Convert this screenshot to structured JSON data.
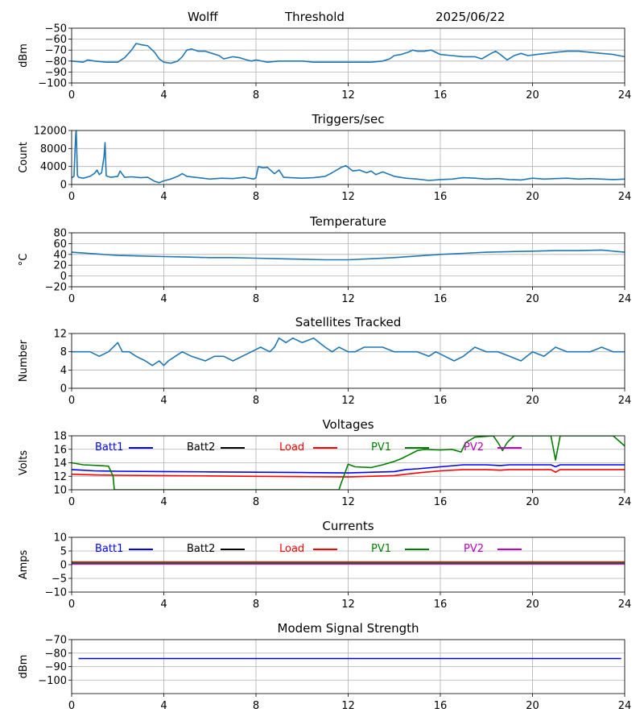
{
  "header": {
    "station": "Wolff",
    "mode": "Threshold",
    "date": "2025/06/22"
  },
  "chart_data": [
    {
      "type": "line",
      "title": "",
      "xlabel": "",
      "ylabel": "dBm",
      "xlim": [
        0,
        24
      ],
      "ylim": [
        -100,
        -50
      ],
      "xticks": [
        "0",
        "4",
        "8",
        "12",
        "16",
        "20",
        "24"
      ],
      "yticks": [
        "−50",
        "−60",
        "−70",
        "−80",
        "−90",
        "−100"
      ],
      "grid": true,
      "series": [
        {
          "color": "#1f77b4",
          "x": [
            0,
            0.5,
            0.7,
            1.0,
            1.5,
            2.0,
            2.3,
            2.6,
            2.8,
            3.0,
            3.3,
            3.6,
            3.8,
            4.0,
            4.3,
            4.6,
            4.8,
            5.0,
            5.2,
            5.5,
            5.8,
            6.1,
            6.4,
            6.6,
            7.0,
            7.3,
            7.6,
            7.8,
            8.0,
            8.5,
            9.0,
            9.5,
            10.0,
            10.5,
            11.0,
            12.0,
            13.0,
            13.5,
            13.8,
            14.0,
            14.3,
            14.6,
            14.8,
            15.0,
            15.3,
            15.6,
            15.8,
            16.0,
            16.5,
            17.0,
            17.5,
            17.8,
            18.2,
            18.4,
            18.6,
            18.9,
            19.2,
            19.5,
            19.8,
            20.2,
            20.6,
            21.0,
            21.5,
            22.0,
            22.5,
            23.0,
            23.5,
            24.0
          ],
          "y": [
            -80,
            -81,
            -79,
            -80,
            -81,
            -81,
            -77,
            -70,
            -64,
            -65,
            -66,
            -72,
            -78,
            -81,
            -82,
            -80,
            -76,
            -70,
            -69,
            -71,
            -71,
            -73,
            -75,
            -78,
            -76,
            -77,
            -79,
            -80,
            -79,
            -81,
            -80,
            -80,
            -80,
            -81,
            -81,
            -81,
            -81,
            -80,
            -78,
            -75,
            -74,
            -72,
            -70,
            -71,
            -71,
            -70,
            -72,
            -74,
            -75,
            -76,
            -76,
            -78,
            -73,
            -71,
            -74,
            -79,
            -75,
            -73,
            -75,
            -74,
            -73,
            -72,
            -71,
            -71,
            -72,
            -73,
            -74,
            -76
          ]
        }
      ]
    },
    {
      "type": "line",
      "title": "Triggers/sec",
      "xlabel": "",
      "ylabel": "Count",
      "xlim": [
        0,
        24
      ],
      "ylim": [
        0,
        12000
      ],
      "xticks": [
        "0",
        "4",
        "8",
        "12",
        "16",
        "20",
        "24"
      ],
      "yticks": [
        "12000",
        "8000",
        "4000",
        "0"
      ],
      "grid": true,
      "series": [
        {
          "color": "#1f77b4",
          "x": [
            0,
            0.1,
            0.15,
            0.18,
            0.2,
            0.25,
            0.3,
            0.5,
            0.8,
            1.0,
            1.1,
            1.2,
            1.3,
            1.4,
            1.45,
            1.5,
            1.55,
            1.7,
            2.0,
            2.1,
            2.3,
            2.6,
            3.0,
            3.3,
            3.6,
            3.8,
            4.0,
            4.3,
            4.6,
            4.8,
            5.0,
            5.5,
            6.0,
            6.5,
            7.0,
            7.5,
            7.9,
            8.0,
            8.1,
            8.3,
            8.5,
            8.8,
            9.0,
            9.2,
            9.5,
            10.0,
            10.5,
            11.0,
            11.3,
            11.5,
            11.7,
            11.9,
            12.0,
            12.2,
            12.5,
            12.8,
            13.0,
            13.2,
            13.5,
            14.0,
            14.5,
            15.0,
            15.5,
            16.0,
            16.5,
            17.0,
            17.5,
            18.0,
            18.5,
            19.0,
            19.5,
            20.0,
            20.5,
            21.0,
            21.5,
            22.0,
            22.5,
            23.0,
            23.5,
            24.0
          ],
          "y": [
            1500,
            1800,
            8000,
            11500,
            12000,
            2000,
            1600,
            1400,
            1800,
            2500,
            3200,
            2200,
            2600,
            6000,
            9300,
            2000,
            1800,
            1600,
            1800,
            3000,
            1600,
            1700,
            1500,
            1600,
            700,
            400,
            800,
            1200,
            1800,
            2400,
            1800,
            1500,
            1200,
            1400,
            1300,
            1600,
            1200,
            1500,
            4000,
            3700,
            3800,
            2400,
            3200,
            1600,
            1500,
            1400,
            1500,
            1800,
            2600,
            3200,
            3800,
            4200,
            3800,
            3000,
            3200,
            2600,
            3000,
            2200,
            2800,
            1800,
            1400,
            1200,
            900,
            1100,
            1200,
            1500,
            1400,
            1200,
            1300,
            1100,
            1000,
            1400,
            1200,
            1300,
            1400,
            1200,
            1300,
            1200,
            1100,
            1200
          ]
        }
      ]
    },
    {
      "type": "line",
      "title": "Temperature",
      "xlabel": "",
      "ylabel": "°C",
      "xlim": [
        0,
        24
      ],
      "ylim": [
        -20,
        80
      ],
      "xticks": [
        "0",
        "4",
        "8",
        "12",
        "16",
        "20",
        "24"
      ],
      "yticks": [
        "80",
        "60",
        "40",
        "20",
        "0",
        "−20"
      ],
      "grid": true,
      "series": [
        {
          "color": "#1f77b4",
          "x": [
            0,
            1,
            2,
            3,
            4,
            5,
            6,
            7,
            8,
            9,
            10,
            11,
            12,
            13,
            14,
            15,
            16,
            17,
            18,
            19,
            20,
            21,
            22,
            23,
            24
          ],
          "y": [
            44,
            41,
            38,
            37,
            36,
            35,
            34,
            34,
            33,
            32,
            31,
            30,
            30,
            32,
            34,
            37,
            40,
            42,
            44,
            45,
            46,
            47,
            47,
            48,
            44
          ]
        }
      ]
    },
    {
      "type": "line",
      "title": "Satellites Tracked",
      "xlabel": "",
      "ylabel": "Number",
      "xlim": [
        0,
        24
      ],
      "ylim": [
        0,
        12
      ],
      "xticks": [
        "0",
        "4",
        "8",
        "12",
        "16",
        "20",
        "24"
      ],
      "yticks": [
        "12",
        "8",
        "4",
        "0"
      ],
      "grid": true,
      "series": [
        {
          "color": "#1f77b4",
          "x": [
            0,
            0.8,
            1.2,
            1.6,
            2.0,
            2.2,
            2.5,
            2.8,
            3.2,
            3.5,
            3.8,
            4.0,
            4.2,
            4.5,
            4.8,
            5.2,
            5.8,
            6.2,
            6.6,
            7.0,
            7.4,
            7.8,
            8.2,
            8.6,
            8.8,
            9.0,
            9.3,
            9.6,
            10.0,
            10.5,
            11.0,
            11.3,
            11.6,
            12.0,
            12.3,
            12.7,
            13.0,
            13.5,
            14.0,
            14.5,
            15.0,
            15.5,
            15.8,
            16.2,
            16.6,
            17.0,
            17.5,
            18.0,
            18.5,
            19.0,
            19.5,
            20.0,
            20.5,
            21.0,
            21.5,
            22.0,
            22.5,
            23.0,
            23.5,
            24.0
          ],
          "y": [
            8,
            8,
            7,
            8,
            10,
            8,
            8,
            7,
            6,
            5,
            6,
            5,
            6,
            7,
            8,
            7,
            6,
            7,
            7,
            6,
            7,
            8,
            9,
            8,
            9,
            11,
            10,
            11,
            10,
            11,
            9,
            8,
            9,
            8,
            8,
            9,
            9,
            9,
            8,
            8,
            8,
            7,
            8,
            7,
            6,
            7,
            9,
            8,
            8,
            7,
            6,
            8,
            7,
            9,
            8,
            8,
            8,
            9,
            8,
            8
          ]
        }
      ]
    },
    {
      "type": "line",
      "title": "Voltages",
      "xlabel": "",
      "ylabel": "Volts",
      "xlim": [
        0,
        24
      ],
      "ylim": [
        10,
        18
      ],
      "xticks": [
        "0",
        "4",
        "8",
        "12",
        "16",
        "20",
        "24"
      ],
      "yticks": [
        "18",
        "16",
        "14",
        "12",
        "10"
      ],
      "grid": true,
      "legend": "inline-top",
      "series": [
        {
          "name": "Batt1",
          "color": "#0000ff",
          "x": [
            0,
            1,
            2,
            4,
            6,
            8,
            10,
            12,
            14,
            14.5,
            15,
            16,
            17,
            18,
            18.6,
            19,
            20,
            20.8,
            21,
            21.2,
            22,
            24
          ],
          "y": [
            13.0,
            12.8,
            12.75,
            12.7,
            12.65,
            12.6,
            12.55,
            12.5,
            12.7,
            13.0,
            13.1,
            13.4,
            13.7,
            13.7,
            13.6,
            13.7,
            13.7,
            13.7,
            13.4,
            13.7,
            13.7,
            13.7
          ]
        },
        {
          "name": "Batt2",
          "color": "#000000",
          "x": [],
          "y": []
        },
        {
          "name": "Load",
          "color": "#ff0000",
          "x": [
            0,
            1,
            2,
            4,
            6,
            8,
            10,
            12,
            14,
            14.5,
            15,
            16,
            17,
            18,
            18.6,
            19,
            20,
            20.8,
            21,
            21.2,
            22,
            24
          ],
          "y": [
            12.3,
            12.2,
            12.15,
            12.1,
            12.05,
            12.0,
            11.95,
            11.9,
            12.1,
            12.3,
            12.5,
            12.8,
            13.0,
            13.0,
            12.9,
            13.0,
            13.0,
            13.0,
            12.6,
            13.0,
            13.0,
            13.0
          ]
        },
        {
          "name": "PV1",
          "color": "#008000",
          "x": [
            0,
            0.5,
            1.2,
            1.6,
            1.8,
            1.85,
            11.6,
            11.7,
            12.0,
            12.3,
            13.0,
            13.5,
            14.0,
            14.3,
            15.0,
            15.3,
            16.0,
            16.5,
            16.9,
            17.1,
            17.5,
            18.3,
            18.5,
            18.7,
            18.9,
            19.2,
            19.6,
            20.8,
            21.0,
            21.2,
            21.5,
            23.5,
            24.0
          ],
          "y": [
            14.0,
            13.7,
            13.6,
            13.5,
            12.0,
            10.0,
            10.0,
            11.0,
            13.8,
            13.4,
            13.3,
            13.7,
            14.2,
            14.6,
            15.8,
            16.0,
            15.9,
            16.0,
            15.6,
            17.0,
            17.8,
            18.0,
            17.0,
            15.8,
            17.0,
            18.0,
            18.0,
            18.0,
            14.4,
            18.0,
            18.0,
            18.0,
            16.5
          ]
        },
        {
          "name": "PV2",
          "color": "#bf00bf",
          "x": [],
          "y": []
        }
      ]
    },
    {
      "type": "line",
      "title": "Currents",
      "xlabel": "",
      "ylabel": "Amps",
      "xlim": [
        0,
        24
      ],
      "ylim": [
        -10,
        10
      ],
      "xticks": [
        "0",
        "4",
        "8",
        "12",
        "16",
        "20",
        "24"
      ],
      "yticks": [
        "10",
        "5",
        "0",
        "−5",
        "−10"
      ],
      "grid": true,
      "legend": "inline-top",
      "series": [
        {
          "name": "Batt1",
          "color": "#0000ff",
          "x": [
            0,
            24
          ],
          "y": [
            0.4,
            0.4
          ]
        },
        {
          "name": "Batt2",
          "color": "#000000",
          "x": [
            0,
            24
          ],
          "y": [
            0.6,
            0.6
          ]
        },
        {
          "name": "Load",
          "color": "#ff0000",
          "x": [
            0,
            24
          ],
          "y": [
            1.0,
            1.0
          ]
        },
        {
          "name": "PV1",
          "color": "#008000",
          "x": [
            0,
            24
          ],
          "y": [
            0.8,
            0.8
          ]
        },
        {
          "name": "PV2",
          "color": "#bf00bf",
          "x": [
            0,
            24
          ],
          "y": [
            0.3,
            0.3
          ]
        }
      ]
    },
    {
      "type": "line",
      "title": "Modem Signal Strength",
      "xlabel": "",
      "ylabel": "dBm",
      "xlim": [
        0,
        24
      ],
      "ylim": [
        -110,
        -70
      ],
      "xticks": [
        "0",
        "4",
        "8",
        "12",
        "16",
        "20",
        "24"
      ],
      "yticks": [
        "−70",
        "−80",
        "−90",
        "−100"
      ],
      "grid": true,
      "series": [
        {
          "color": "#0000cd",
          "x": [
            0.3,
            23.85
          ],
          "y": [
            -84,
            -84
          ]
        }
      ]
    }
  ]
}
